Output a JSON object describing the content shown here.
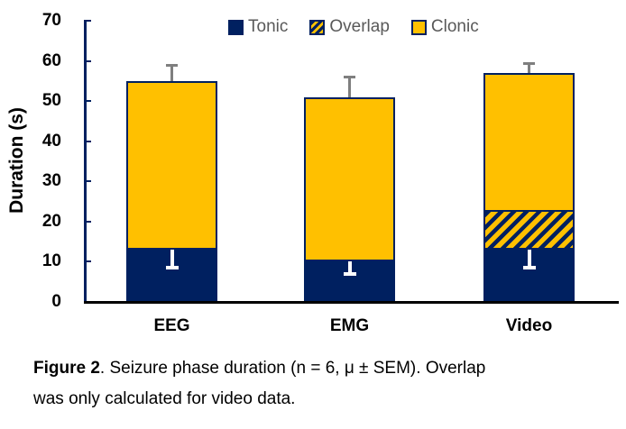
{
  "chart_data": {
    "type": "bar",
    "subtype": "stacked",
    "categories": [
      "EEG",
      "EMG",
      "Video"
    ],
    "series": [
      {
        "name": "Tonic",
        "values": [
          13,
          10,
          13
        ],
        "sem_lower": [
          4.5,
          3,
          4.5
        ],
        "color": "#002060",
        "pattern": "solid"
      },
      {
        "name": "Overlap",
        "values": [
          0,
          0,
          9.5
        ],
        "color": "#FFC000",
        "pattern": "diagonal-hatch",
        "hatch_color": "#002060"
      },
      {
        "name": "Clonic",
        "values": [
          42,
          41,
          34.5
        ],
        "color": "#FFC000",
        "pattern": "solid"
      }
    ],
    "totals": [
      55,
      51,
      57
    ],
    "total_sem_upper": [
      4,
      5,
      2.5
    ],
    "title": "",
    "xlabel": "",
    "ylabel": "Duration (s)",
    "yticks": [
      0,
      10,
      20,
      30,
      40,
      50,
      60,
      70
    ],
    "ylim": [
      0,
      70
    ],
    "grid": false,
    "legend": {
      "position": "top",
      "labels": [
        "Tonic",
        "Overlap",
        "Clonic"
      ],
      "text_color": "#595959"
    },
    "error_bar_colors": {
      "total": "#7F7F7F",
      "tonic": "#FFFFFF"
    },
    "axis_colors": {
      "y_axis": "#002060",
      "x_axis": "#000000",
      "tick_labels": "#000000"
    }
  },
  "caption": {
    "bold": "Figure 2",
    "line1_rest": ". Seizure phase duration (n = 6, μ ± SEM). Overlap",
    "line2": "was only calculated for video data."
  }
}
